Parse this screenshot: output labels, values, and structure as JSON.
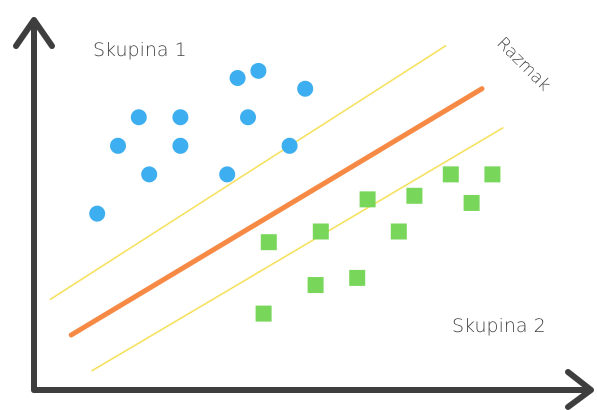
{
  "chart_data": {
    "type": "scatter",
    "title": "",
    "xlabel": "",
    "ylabel": "",
    "xlim": [
      0,
      100
    ],
    "ylim": [
      0,
      100
    ],
    "grid": false,
    "series": [
      {
        "name": "Skupina 1",
        "marker": "circle",
        "color": "#3daef0",
        "points": [
          [
            38,
            86
          ],
          [
            42,
            88
          ],
          [
            51,
            83
          ],
          [
            19,
            75
          ],
          [
            27,
            75
          ],
          [
            40,
            75
          ],
          [
            15,
            67
          ],
          [
            27,
            67
          ],
          [
            48,
            67
          ],
          [
            21,
            59
          ],
          [
            36,
            59
          ],
          [
            11,
            48
          ]
        ]
      },
      {
        "name": "Skupina 2",
        "marker": "square",
        "color": "#78d65a",
        "points": [
          [
            79,
            59
          ],
          [
            87,
            59
          ],
          [
            63,
            52
          ],
          [
            72,
            53
          ],
          [
            83,
            51
          ],
          [
            54,
            43
          ],
          [
            69,
            43
          ],
          [
            44,
            40
          ],
          [
            61,
            30
          ],
          [
            53,
            28
          ],
          [
            43,
            20
          ]
        ]
      }
    ],
    "lines": [
      {
        "role": "separator",
        "color": "#f68a45",
        "from": [
          6,
          14
        ],
        "to": [
          85,
          83
        ]
      },
      {
        "role": "margin",
        "color": "#f5e15e",
        "from": [
          2,
          24
        ],
        "to": [
          78,
          95
        ]
      },
      {
        "role": "margin",
        "color": "#f5e15e",
        "from": [
          10,
          4
        ],
        "to": [
          89,
          72
        ]
      }
    ],
    "annotations": {
      "group1": "Skupina 1",
      "group2": "Skupina 2",
      "margin": "Razmak"
    }
  }
}
